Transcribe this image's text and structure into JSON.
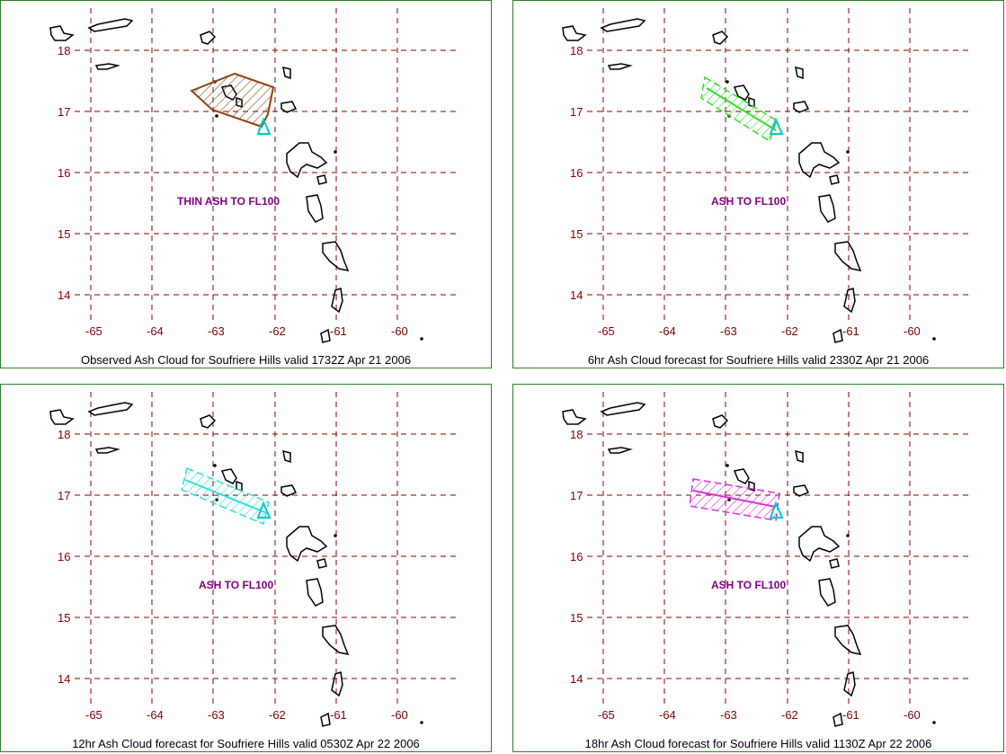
{
  "panels": [
    {
      "caption": "Observed Ash Cloud for Soufriere  Hills valid 1732Z Apr 21 2006",
      "label": "THIN ASH TO FL100",
      "color": "#8b4513",
      "shape": "polygon"
    },
    {
      "caption": "6hr Ash Cloud forecast for Soufriere  Hills valid 2330Z Apr 21 2006",
      "label": "ASH TO FL100",
      "color": "#33dd33",
      "shape": "band"
    },
    {
      "caption": "12hr Ash Cloud forecast for Soufriere  Hills valid 0530Z Apr 22 2006",
      "label": "ASH TO FL100",
      "color": "#33dddd",
      "shape": "band"
    },
    {
      "caption": "18hr Ash Cloud forecast for Soufriere  Hills valid 1130Z Apr 22 2006",
      "label": "ASH TO FL100",
      "color": "#dd33dd",
      "shape": "band"
    }
  ],
  "map": {
    "lat_ticks": [
      "18",
      "17",
      "16",
      "15",
      "14"
    ],
    "lon_ticks": [
      "-65",
      "-64",
      "-63",
      "-62",
      "-61",
      "-60"
    ],
    "grid_color": "#800000",
    "volcano_color": "#00c8c8"
  }
}
